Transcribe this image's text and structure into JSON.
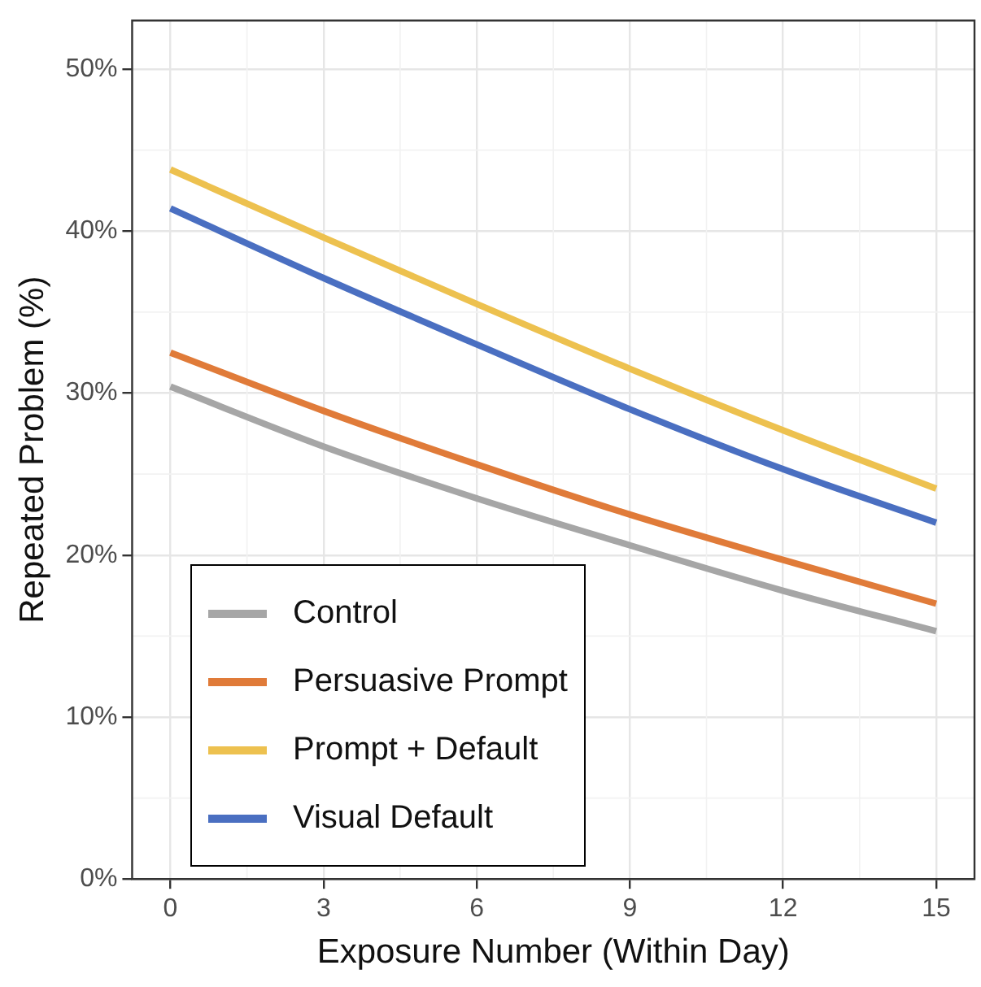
{
  "chart_data": {
    "type": "line",
    "xlabel": "Exposure Number (Within Day)",
    "ylabel": "Repeated Problem (%)",
    "x": [
      0,
      3,
      6,
      9,
      12,
      15
    ],
    "series": [
      {
        "name": "Control",
        "color": "#a6a6a6",
        "values": [
          30.4,
          26.7,
          23.5,
          20.6,
          17.8,
          15.3
        ]
      },
      {
        "name": "Persuasive Prompt",
        "color": "#e07b39",
        "values": [
          32.5,
          28.9,
          25.6,
          22.5,
          19.7,
          17.0
        ]
      },
      {
        "name": "Prompt + Default",
        "color": "#edc14f",
        "values": [
          43.8,
          39.6,
          35.5,
          31.5,
          27.7,
          24.1
        ]
      },
      {
        "name": "Visual Default",
        "color": "#4a6fc1",
        "values": [
          41.4,
          37.1,
          33.0,
          29.0,
          25.3,
          22.0
        ]
      }
    ],
    "xlim": [
      -0.75,
      15.75
    ],
    "xticks": [
      0,
      3,
      6,
      9,
      12,
      15
    ],
    "ylim": [
      0,
      53
    ],
    "yticks": [
      {
        "value": 0,
        "label": "0%"
      },
      {
        "value": 10,
        "label": "10%"
      },
      {
        "value": 20,
        "label": "20%"
      },
      {
        "value": 30,
        "label": "30%"
      },
      {
        "value": 40,
        "label": "40%"
      },
      {
        "value": 50,
        "label": "50%"
      }
    ],
    "grid": true,
    "legend": "bottom left",
    "marker": "none",
    "line_style": "solid"
  }
}
